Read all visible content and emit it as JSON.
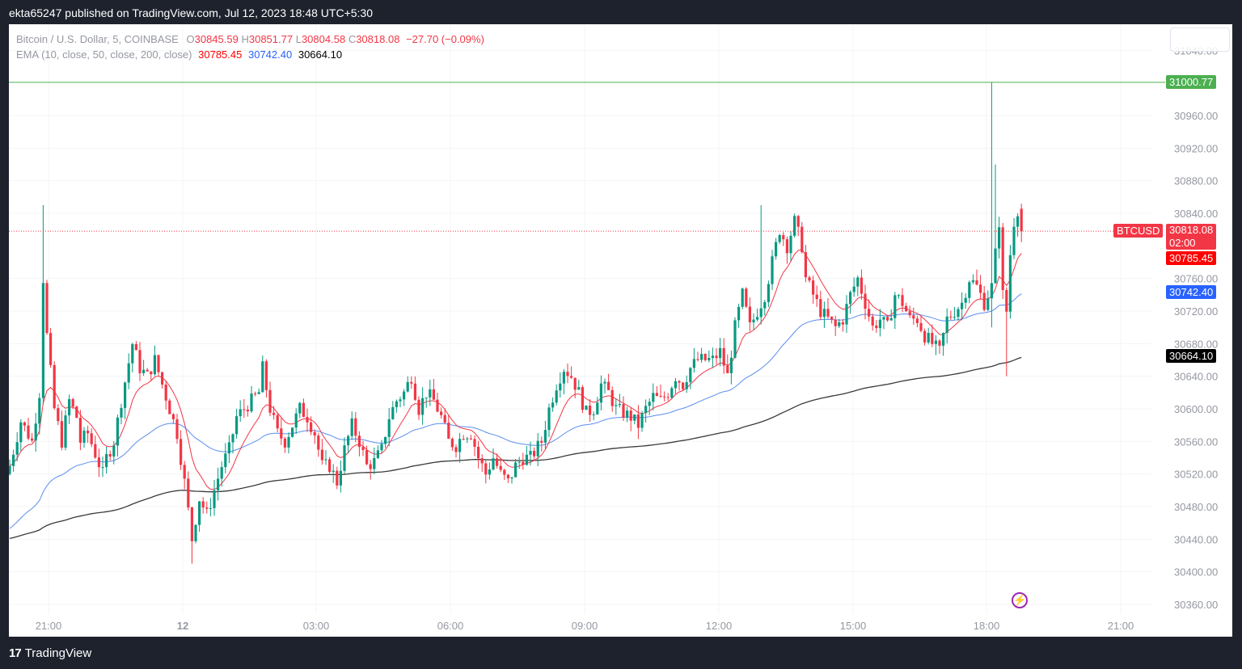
{
  "header": {
    "published_text": "ekta65247 published on TradingView.com, Jul 12, 2023 18:48 UTC+5:30"
  },
  "legend": {
    "symbol": "Bitcoin / U.S. Dollar, 5, COINBASE",
    "open_label": "O",
    "open": "30845.59",
    "high_label": "H",
    "high": "30851.77",
    "low_label": "L",
    "low": "30804.58",
    "close_label": "C",
    "close": "30818.08",
    "change": "−27.70 (−0.09%)",
    "ema_label": "EMA (10, close, 50, close, 200, close)",
    "ema10": "30785.45",
    "ema50": "30742.40",
    "ema200": "30664.10"
  },
  "price_axis": {
    "ticks": [
      "31040.00",
      "30960.00",
      "30920.00",
      "30880.00",
      "30840.00",
      "30760.00",
      "30720.00",
      "30680.00",
      "30640.00",
      "30600.00",
      "30560.00",
      "30520.00",
      "30480.00",
      "30440.00",
      "30400.00",
      "30360.00"
    ],
    "tags": {
      "high_line": {
        "value": "31000.77",
        "color": "#4caf50"
      },
      "symbol": {
        "label": "BTCUSD",
        "color": "#f23645"
      },
      "last_price": {
        "value": "30818.08",
        "countdown": "02:00",
        "color": "#f23645"
      },
      "ema10": {
        "value": "30785.45",
        "color": "#ff0000"
      },
      "ema50": {
        "value": "30742.40",
        "color": "#2962ff"
      },
      "ema200": {
        "value": "30664.10",
        "color": "#000000"
      }
    }
  },
  "time_axis": {
    "ticks": [
      {
        "label": "21:00",
        "bold": false
      },
      {
        "label": "12",
        "bold": true
      },
      {
        "label": "03:00",
        "bold": false
      },
      {
        "label": "06:00",
        "bold": false
      },
      {
        "label": "09:00",
        "bold": false
      },
      {
        "label": "12:00",
        "bold": false
      },
      {
        "label": "15:00",
        "bold": false
      },
      {
        "label": "18:00",
        "bold": false
      },
      {
        "label": "21:00",
        "bold": false
      }
    ]
  },
  "footer": {
    "brand": "TradingView",
    "logo": "17"
  },
  "icons": {
    "flash_icon": "⚡"
  },
  "colors": {
    "up": "#089981",
    "down": "#f23645",
    "ema10": "#f23645",
    "ema50": "#5b8def",
    "ema200": "#3a3a3a",
    "high_line": "#4caf50"
  },
  "chart_data": {
    "type": "candlestick",
    "title": "Bitcoin / U.S. Dollar, 5, COINBASE",
    "interval": "5m",
    "xlabel": "",
    "ylabel": "USD",
    "ylim": [
      30340,
      31060
    ],
    "x_ticks": [
      "21:00",
      "12",
      "03:00",
      "06:00",
      "09:00",
      "12:00",
      "15:00",
      "18:00",
      "21:00"
    ],
    "horizontal_line": 31000.77,
    "last_price": 30818.08,
    "legend": [
      "EMA 10 (close)",
      "EMA 50 (close)",
      "EMA 200 (close)"
    ],
    "anchors_close": [
      [
        0,
        30530
      ],
      [
        3,
        30585
      ],
      [
        6,
        30560
      ],
      [
        8,
        30620
      ],
      [
        9,
        30760
      ],
      [
        10,
        30690
      ],
      [
        12,
        30600
      ],
      [
        14,
        30560
      ],
      [
        16,
        30610
      ],
      [
        18,
        30590
      ],
      [
        19,
        30560
      ],
      [
        21,
        30570
      ],
      [
        23,
        30545
      ],
      [
        25,
        30520
      ],
      [
        26,
        30540
      ],
      [
        28,
        30560
      ],
      [
        30,
        30610
      ],
      [
        33,
        30680
      ],
      [
        35,
        30650
      ],
      [
        37,
        30640
      ],
      [
        39,
        30660
      ],
      [
        41,
        30630
      ],
      [
        43,
        30600
      ],
      [
        45,
        30570
      ],
      [
        47,
        30510
      ],
      [
        49,
        30440
      ],
      [
        51,
        30490
      ],
      [
        53,
        30470
      ],
      [
        55,
        30500
      ],
      [
        57,
        30530
      ],
      [
        59,
        30550
      ],
      [
        61,
        30590
      ],
      [
        63,
        30600
      ],
      [
        65,
        30610
      ],
      [
        67,
        30620
      ],
      [
        68,
        30650
      ],
      [
        70,
        30600
      ],
      [
        72,
        30570
      ],
      [
        74,
        30560
      ],
      [
        76,
        30580
      ],
      [
        78,
        30600
      ],
      [
        80,
        30590
      ],
      [
        82,
        30570
      ],
      [
        84,
        30530
      ],
      [
        86,
        30530
      ],
      [
        88,
        30510
      ],
      [
        90,
        30550
      ],
      [
        92,
        30580
      ],
      [
        94,
        30560
      ],
      [
        96,
        30530
      ],
      [
        98,
        30535
      ],
      [
        100,
        30550
      ],
      [
        102,
        30590
      ],
      [
        104,
        30610
      ],
      [
        106,
        30620
      ],
      [
        108,
        30640
      ],
      [
        110,
        30600
      ],
      [
        112,
        30620
      ],
      [
        114,
        30610
      ],
      [
        116,
        30590
      ],
      [
        118,
        30560
      ],
      [
        120,
        30555
      ],
      [
        122,
        30570
      ],
      [
        124,
        30570
      ],
      [
        126,
        30540
      ],
      [
        128,
        30520
      ],
      [
        130,
        30540
      ],
      [
        132,
        30520
      ],
      [
        134,
        30510
      ],
      [
        136,
        30530
      ],
      [
        138,
        30540
      ],
      [
        140,
        30540
      ],
      [
        143,
        30560
      ],
      [
        145,
        30600
      ],
      [
        147,
        30630
      ],
      [
        149,
        30650
      ],
      [
        151,
        30640
      ],
      [
        153,
        30620
      ],
      [
        155,
        30595
      ],
      [
        157,
        30600
      ],
      [
        159,
        30630
      ],
      [
        161,
        30620
      ],
      [
        163,
        30600
      ],
      [
        165,
        30595
      ],
      [
        167,
        30590
      ],
      [
        169,
        30580
      ],
      [
        171,
        30600
      ],
      [
        173,
        30615
      ],
      [
        175,
        30610
      ],
      [
        177,
        30620
      ],
      [
        179,
        30640
      ],
      [
        181,
        30630
      ],
      [
        183,
        30650
      ],
      [
        185,
        30660
      ],
      [
        187,
        30660
      ],
      [
        189,
        30660
      ],
      [
        191,
        30670
      ],
      [
        193,
        30640
      ],
      [
        195,
        30700
      ],
      [
        197,
        30740
      ],
      [
        199,
        30700
      ],
      [
        201,
        30720
      ],
      [
        203,
        30740
      ],
      [
        205,
        30780
      ],
      [
        207,
        30820
      ],
      [
        209,
        30800
      ],
      [
        211,
        30830
      ],
      [
        213,
        30800
      ],
      [
        214,
        30760
      ],
      [
        216,
        30740
      ],
      [
        218,
        30720
      ],
      [
        220,
        30710
      ],
      [
        222,
        30700
      ],
      [
        224,
        30710
      ],
      [
        226,
        30740
      ],
      [
        228,
        30760
      ],
      [
        230,
        30730
      ],
      [
        232,
        30700
      ],
      [
        234,
        30710
      ],
      [
        236,
        30700
      ],
      [
        238,
        30740
      ],
      [
        240,
        30730
      ],
      [
        242,
        30710
      ],
      [
        244,
        30710
      ],
      [
        246,
        30690
      ],
      [
        248,
        30680
      ],
      [
        250,
        30670
      ],
      [
        252,
        30710
      ],
      [
        254,
        30720
      ],
      [
        256,
        30730
      ],
      [
        258,
        30760
      ],
      [
        260,
        30750
      ],
      [
        262,
        30730
      ],
      [
        264,
        30750
      ],
      [
        265,
        30790
      ],
      [
        266,
        30830
      ],
      [
        267,
        30740
      ],
      [
        268,
        30720
      ],
      [
        269,
        30790
      ],
      [
        270,
        30830
      ],
      [
        271,
        30845
      ],
      [
        272,
        30818
      ]
    ],
    "notable_wicks": [
      {
        "index": 9,
        "high": 30850
      },
      {
        "index": 49,
        "low": 30410
      },
      {
        "index": 202,
        "high": 30850
      },
      {
        "index": 264,
        "high": 31000.77,
        "low": 30700
      },
      {
        "index": 265,
        "high": 30900
      },
      {
        "index": 268,
        "low": 30640
      }
    ]
  }
}
